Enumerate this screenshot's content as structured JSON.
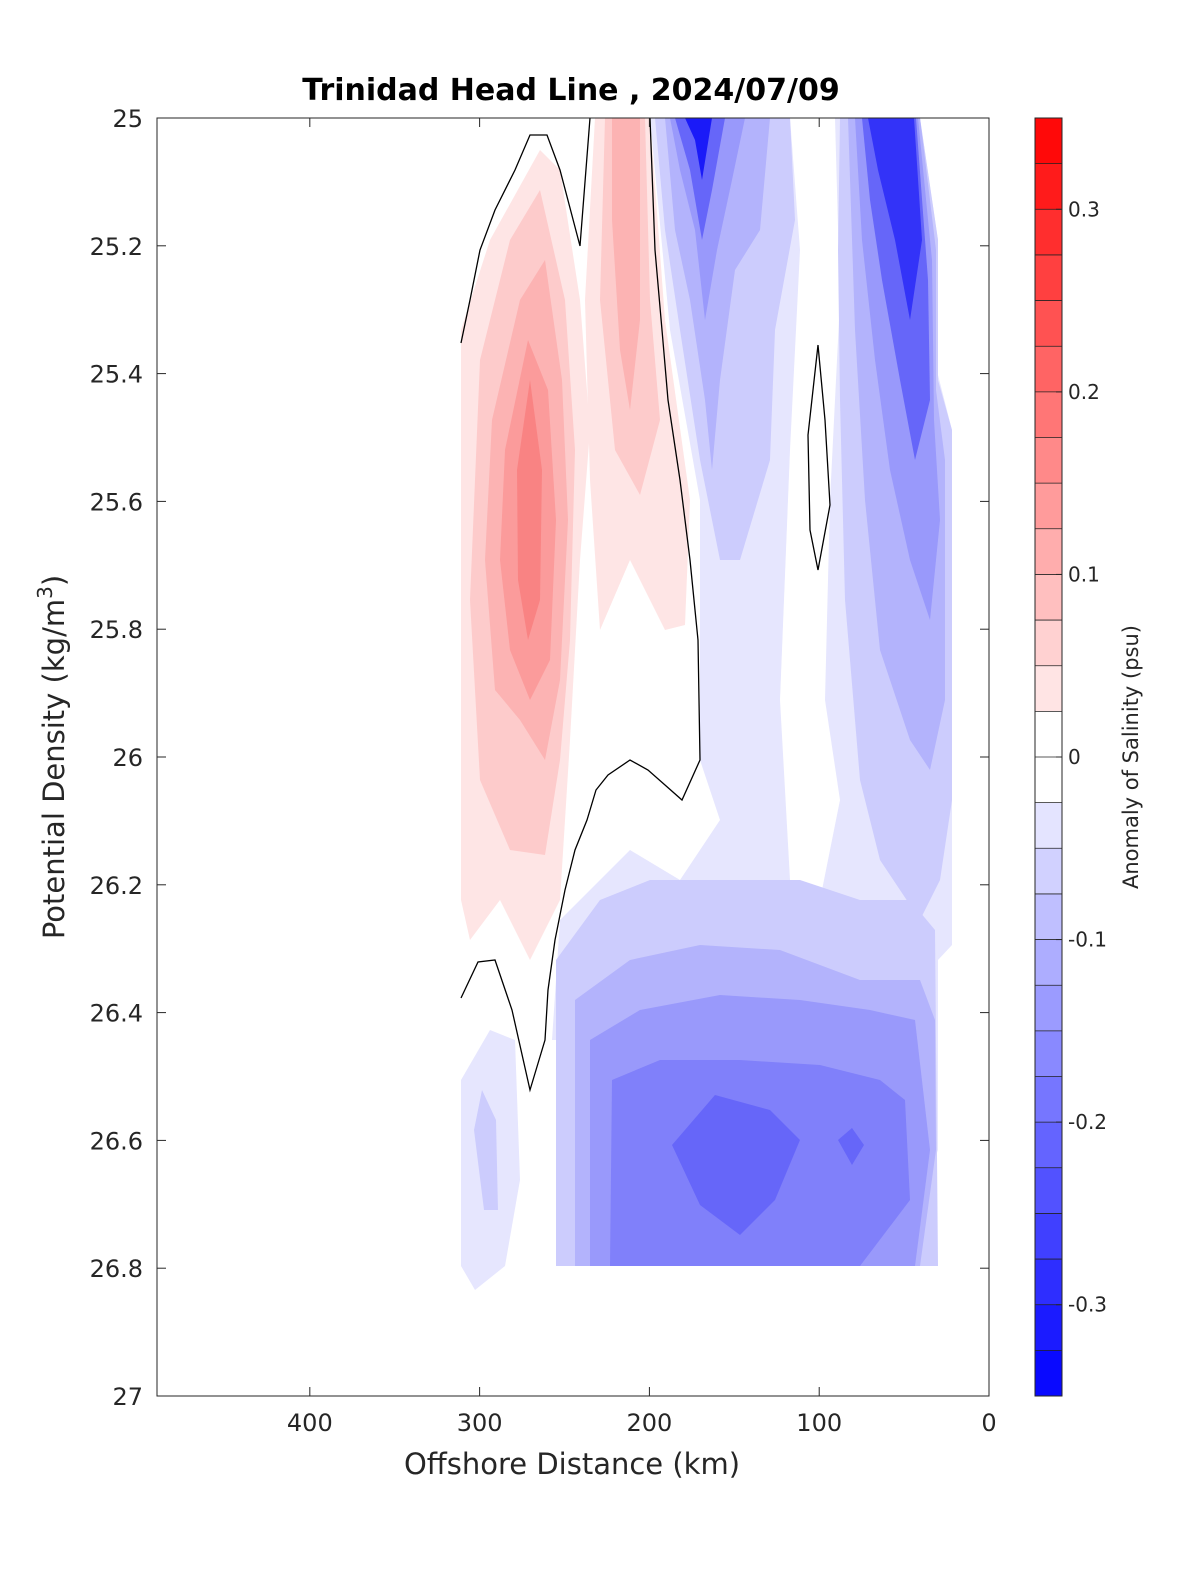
{
  "chart_data": {
    "type": "heatmap",
    "title": "Trinidad Head Line , 2024/07/09",
    "xlabel": "Offshore Distance (km)",
    "ylabel_main": "Potential Density (kg/m",
    "ylabel_sup": "3",
    "ylabel_close": ")",
    "colorbar_label": "Anomaly of Salinity (psu)",
    "xlim": [
      490,
      0
    ],
    "x_reversed": true,
    "ylim": [
      25,
      27
    ],
    "y_reversed": true,
    "x_ticks": [
      "400",
      "300",
      "200",
      "100",
      "0"
    ],
    "x_tick_values": [
      400,
      300,
      200,
      100,
      0
    ],
    "y_ticks": [
      "25",
      "25.2",
      "25.4",
      "25.6",
      "25.8",
      "26",
      "26.2",
      "26.4",
      "26.6",
      "26.8",
      "27"
    ],
    "y_tick_values": [
      25,
      25.2,
      25.4,
      25.6,
      25.8,
      26,
      26.2,
      26.4,
      26.6,
      26.8,
      27
    ],
    "colorbar_range": [
      -0.35,
      0.35
    ],
    "colorbar_ticks": [
      "0.3",
      "0.2",
      "0.1",
      "0",
      "-0.1",
      "-0.2",
      "-0.3"
    ],
    "colorbar_tick_values": [
      0.3,
      0.2,
      0.1,
      0,
      -0.1,
      -0.2,
      -0.3
    ],
    "colormap": "blue-white-red diverging",
    "anomaly_levels": 28,
    "zero_contour_color": "#000000",
    "data_extent_x": [
      310,
      20
    ],
    "data_extent_y": [
      25,
      26.8
    ],
    "features": [
      {
        "name": "positive anomaly core",
        "x": 270,
        "y": 25.65,
        "value": 0.13
      },
      {
        "name": "positive anomaly",
        "x": 215,
        "y": 25.25,
        "value": 0.08
      },
      {
        "name": "negative anomaly surface",
        "x": 170,
        "y": 25.05,
        "value": -0.3
      },
      {
        "name": "negative anomaly surface",
        "x": 50,
        "y": 25.1,
        "value": -0.3
      },
      {
        "name": "negative anomaly at depth",
        "x": 150,
        "y": 26.6,
        "value": -0.2
      }
    ]
  }
}
